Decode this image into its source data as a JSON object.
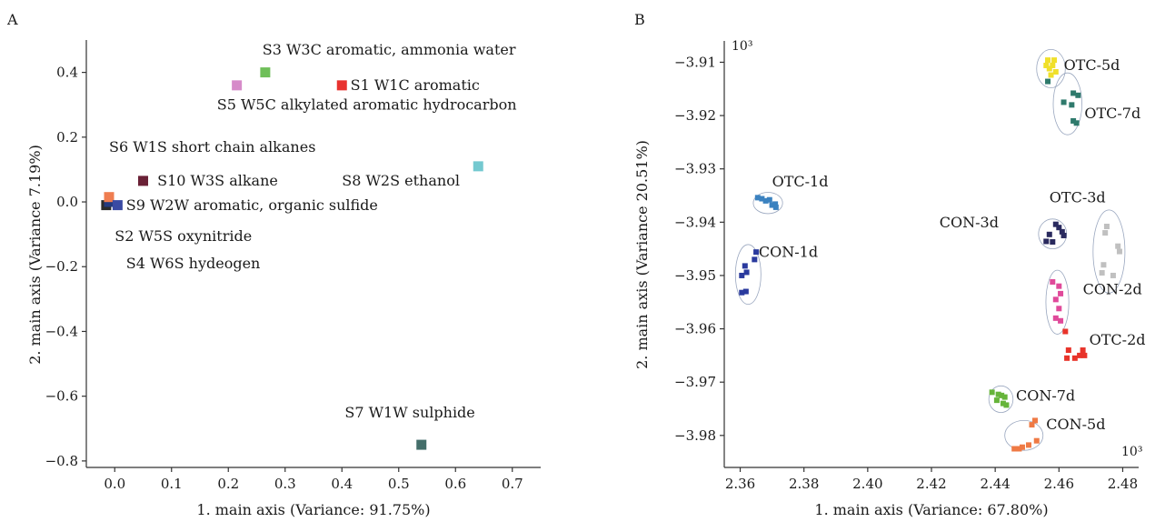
{
  "chart_data": [
    {
      "panel": "A",
      "type": "scatter",
      "xlabel": "1. main axis (Variance: 91.75%)",
      "ylabel": "2. main axis (Variance 7.19%)",
      "xlim": [
        -0.05,
        0.75
      ],
      "ylim": [
        -0.82,
        0.5
      ],
      "xticks": [
        0.0,
        0.1,
        0.2,
        0.3,
        0.4,
        0.5,
        0.6,
        0.7
      ],
      "xtick_labels": [
        "0.0",
        "0.1",
        "0.2",
        "0.3",
        "0.4",
        "0.5",
        "0.6",
        "0.7"
      ],
      "yticks": [
        -0.8,
        -0.6,
        -0.4,
        -0.2,
        0.0,
        0.2,
        0.4
      ],
      "ytick_labels": [
        "−0.8",
        "−0.6",
        "−0.4",
        "−0.2",
        "0.0",
        "0.2",
        "0.4"
      ],
      "points": [
        {
          "x": 0.4,
          "y": 0.36,
          "color": "#e8322f"
        },
        {
          "x": -0.015,
          "y": -0.01,
          "color": "#2b2b2b"
        },
        {
          "x": 0.265,
          "y": 0.4,
          "color": "#6fbf59"
        },
        {
          "x": -0.01,
          "y": 0.0,
          "color": "#243a7e"
        },
        {
          "x": 0.215,
          "y": 0.36,
          "color": "#d68bc9"
        },
        {
          "x": -0.01,
          "y": 0.015,
          "color": "#ef7d50"
        },
        {
          "x": 0.54,
          "y": -0.75,
          "color": "#446e6a"
        },
        {
          "x": 0.64,
          "y": 0.11,
          "color": "#74c9d0"
        },
        {
          "x": 0.005,
          "y": -0.01,
          "color": "#3a4aa3"
        },
        {
          "x": 0.05,
          "y": 0.065,
          "color": "#6a2136"
        }
      ],
      "annotations": [
        {
          "text": "S3 W3C aromatic, ammonia water",
          "x": 0.26,
          "y": 0.455
        },
        {
          "text": "S1 W1C aromatic",
          "x": 0.415,
          "y": 0.345
        },
        {
          "text": "S5 W5C alkylated aromatic hydrocarbon",
          "x": 0.18,
          "y": 0.285
        },
        {
          "text": "S6 W1S short chain alkanes",
          "x": -0.01,
          "y": 0.155
        },
        {
          "text": "S10 W3S alkane",
          "x": 0.075,
          "y": 0.05
        },
        {
          "text": "S8 W2S ethanol",
          "x": 0.4,
          "y": 0.05
        },
        {
          "text": "S9 W2W aromatic, organic sulfide",
          "x": 0.02,
          "y": -0.025
        },
        {
          "text": "S2 W5S oxynitride",
          "x": 0.0,
          "y": -0.12
        },
        {
          "text": "S4 W6S hydeogen",
          "x": 0.02,
          "y": -0.205
        },
        {
          "text": "S7 W1W sulphide",
          "x": 0.405,
          "y": -0.665
        }
      ]
    },
    {
      "panel": "B",
      "type": "scatter",
      "xlabel": "1. main axis (Variance: 67.80%)",
      "ylabel": "2. main axis (Variance 20.51%)",
      "x_multiplier": "10³",
      "y_multiplier": "10³",
      "xlim": [
        2.355,
        2.485
      ],
      "ylim": [
        -3.986,
        -3.906
      ],
      "xticks": [
        2.36,
        2.38,
        2.4,
        2.42,
        2.44,
        2.46,
        2.48
      ],
      "xtick_labels": [
        "2.36",
        "2.38",
        "2.40",
        "2.42",
        "2.44",
        "2.46",
        "2.48"
      ],
      "yticks": [
        -3.98,
        -3.97,
        -3.96,
        -3.95,
        -3.94,
        -3.93,
        -3.92,
        -3.91
      ],
      "ytick_labels": [
        "−3.98",
        "−3.97",
        "−3.96",
        "−3.95",
        "−3.94",
        "−3.93",
        "−3.92",
        "−3.91"
      ],
      "series": [
        {
          "name": "OTC-5d",
          "color": "#f0e02a",
          "label_x": 2.4615,
          "label_y": -3.9115,
          "ellipse": {
            "cx": 2.4575,
            "cy": -3.9112,
            "rx": 0.0045,
            "ry": 0.0036
          },
          "points": [
            [
              2.4565,
              -3.9096
            ],
            [
              2.4585,
              -3.9096
            ],
            [
              2.456,
              -3.9106
            ],
            [
              2.458,
              -3.9106
            ],
            [
              2.457,
              -3.9112
            ],
            [
              2.459,
              -3.9118
            ],
            [
              2.4575,
              -3.9124
            ]
          ]
        },
        {
          "name": "OTC-7d",
          "color": "#2f7a6c",
          "label_x": 2.468,
          "label_y": -3.9205,
          "ellipse": {
            "cx": 2.4627,
            "cy": -3.9178,
            "rx": 0.0045,
            "ry": 0.0058
          },
          "points": [
            [
              2.4565,
              -3.9136
            ],
            [
              2.4645,
              -3.9158
            ],
            [
              2.466,
              -3.9162
            ],
            [
              2.4615,
              -3.9175
            ],
            [
              2.464,
              -3.918
            ],
            [
              2.4645,
              -3.921
            ],
            [
              2.4655,
              -3.9214
            ]
          ]
        },
        {
          "name": "OTC-1d",
          "color": "#3b82c0",
          "label_x": 2.37,
          "label_y": -3.9333,
          "ellipse": {
            "cx": 2.3687,
            "cy": -3.9364,
            "rx": 0.0046,
            "ry": 0.002
          },
          "points": [
            [
              2.3655,
              -3.9354
            ],
            [
              2.3668,
              -3.9356
            ],
            [
              2.368,
              -3.936
            ],
            [
              2.3692,
              -3.9358
            ],
            [
              2.37,
              -3.9368
            ],
            [
              2.371,
              -3.9366
            ],
            [
              2.3712,
              -3.9372
            ]
          ]
        },
        {
          "name": "OTC-3d",
          "color": "#c0c0c0",
          "label_x": 2.457,
          "label_y": -3.9363,
          "ellipse": {
            "cx": 2.4757,
            "cy": -3.9455,
            "rx": 0.005,
            "ry": 0.0078
          },
          "points": [
            [
              2.475,
              -3.9408
            ],
            [
              2.4745,
              -3.942
            ],
            [
              2.4785,
              -3.9445
            ],
            [
              2.479,
              -3.9455
            ],
            [
              2.474,
              -3.948
            ],
            [
              2.4735,
              -3.9495
            ],
            [
              2.477,
              -3.95
            ]
          ]
        },
        {
          "name": "CON-3d",
          "color": "#2a2a5e",
          "label_x": 2.4225,
          "label_y": -3.941,
          "ellipse": {
            "cx": 2.458,
            "cy": -3.9422,
            "rx": 0.0044,
            "ry": 0.0028
          },
          "points": [
            [
              2.459,
              -3.9404
            ],
            [
              2.46,
              -3.941
            ],
            [
              2.461,
              -3.9418
            ],
            [
              2.457,
              -3.9423
            ],
            [
              2.4615,
              -3.9425
            ],
            [
              2.456,
              -3.9436
            ],
            [
              2.458,
              -3.9437
            ]
          ]
        },
        {
          "name": "CON-1d",
          "color": "#2a3a9e",
          "label_x": 2.3658,
          "label_y": -3.9465,
          "ellipse": {
            "cx": 2.3625,
            "cy": -3.9498,
            "rx": 0.004,
            "ry": 0.0056
          },
          "points": [
            [
              2.365,
              -3.9456
            ],
            [
              2.3645,
              -3.947
            ],
            [
              2.3615,
              -3.9482
            ],
            [
              2.362,
              -3.9494
            ],
            [
              2.3605,
              -3.95
            ],
            [
              2.3618,
              -3.953
            ],
            [
              2.3605,
              -3.9532
            ]
          ]
        },
        {
          "name": "CON-2d",
          "color": "#e04a9a",
          "label_x": 2.4675,
          "label_y": -3.9535,
          "ellipse": {
            "cx": 2.4595,
            "cy": -3.955,
            "rx": 0.0036,
            "ry": 0.006
          },
          "points": [
            [
              2.458,
              -3.9512
            ],
            [
              2.46,
              -3.952
            ],
            [
              2.4605,
              -3.9534
            ],
            [
              2.459,
              -3.9545
            ],
            [
              2.46,
              -3.9562
            ],
            [
              2.459,
              -3.958
            ],
            [
              2.4605,
              -3.9585
            ]
          ]
        },
        {
          "name": "OTC-2d",
          "color": "#e8332a",
          "label_x": 2.4695,
          "label_y": -3.963,
          "ellipse": null,
          "points": [
            [
              2.462,
              -3.9605
            ],
            [
              2.463,
              -3.964
            ],
            [
              2.4625,
              -3.9655
            ],
            [
              2.465,
              -3.9655
            ],
            [
              2.4665,
              -3.965
            ],
            [
              2.4675,
              -3.964
            ],
            [
              2.468,
              -3.965
            ]
          ]
        },
        {
          "name": "CON-7d",
          "color": "#66b43a",
          "label_x": 2.4465,
          "label_y": -3.9735,
          "ellipse": {
            "cx": 2.4418,
            "cy": -3.9732,
            "rx": 0.0038,
            "ry": 0.0025
          },
          "points": [
            [
              2.439,
              -3.9719
            ],
            [
              2.441,
              -3.9723
            ],
            [
              2.442,
              -3.9725
            ],
            [
              2.443,
              -3.9728
            ],
            [
              2.4405,
              -3.9734
            ],
            [
              2.4425,
              -3.974
            ],
            [
              2.4435,
              -3.9743
            ]
          ]
        },
        {
          "name": "CON-5d",
          "color": "#ef7a45",
          "label_x": 2.456,
          "label_y": -3.9788,
          "ellipse": {
            "cx": 2.449,
            "cy": -3.98,
            "rx": 0.006,
            "ry": 0.0028
          },
          "points": [
            [
              2.4525,
              -3.9772
            ],
            [
              2.4515,
              -3.978
            ],
            [
              2.453,
              -3.981
            ],
            [
              2.4505,
              -3.9818
            ],
            [
              2.4485,
              -3.9822
            ],
            [
              2.4475,
              -3.9825
            ],
            [
              2.446,
              -3.9825
            ]
          ]
        }
      ]
    }
  ]
}
